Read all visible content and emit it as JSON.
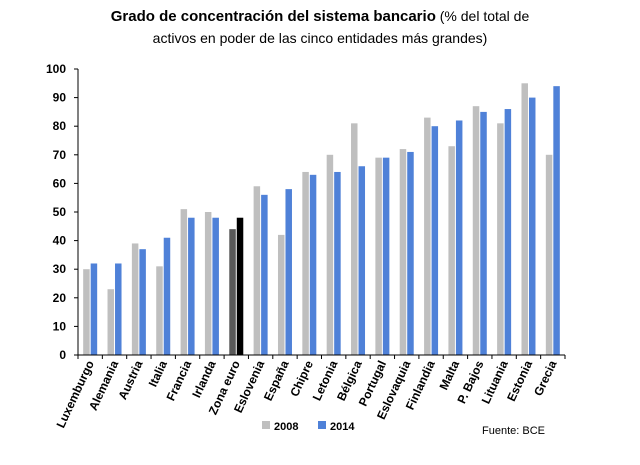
{
  "chart_data": {
    "type": "bar",
    "title": "Grado de concentración del sistema bancario",
    "subtitle_part1": "(% del total de",
    "subtitle_part2": "activos en poder de las cinco entidades más grandes)",
    "source": "Fuente: BCE",
    "ylim": [
      0,
      100
    ],
    "yticks": [
      0,
      10,
      20,
      30,
      40,
      50,
      60,
      70,
      80,
      90,
      100
    ],
    "grid": false,
    "legend_position": "bottom",
    "categories": [
      "Luxemburgo",
      "Alemania",
      "Austria",
      "Italia",
      "Francia",
      "Irlanda",
      "Zona euro",
      "Eslovenia",
      "España",
      "Chipre",
      "Letonia",
      "Bélgica",
      "Portugal",
      "Eslovaquia",
      "Finlandia",
      "Malta",
      "P. Bajos",
      "Lituania",
      "Estonia",
      "Grecia"
    ],
    "highlight_category": "Zona euro",
    "series": [
      {
        "name": "2008",
        "color": "#bfbfbf",
        "highlight_color": "#595959",
        "values": [
          30,
          23,
          39,
          31,
          51,
          50,
          44,
          59,
          42,
          64,
          70,
          81,
          69,
          72,
          83,
          73,
          87,
          81,
          95,
          70
        ]
      },
      {
        "name": "2014",
        "color": "#4f81d8",
        "highlight_color": "#000000",
        "values": [
          32,
          32,
          37,
          41,
          48,
          48,
          48,
          56,
          58,
          63,
          64,
          66,
          69,
          71,
          80,
          82,
          85,
          86,
          90,
          94
        ]
      }
    ]
  }
}
